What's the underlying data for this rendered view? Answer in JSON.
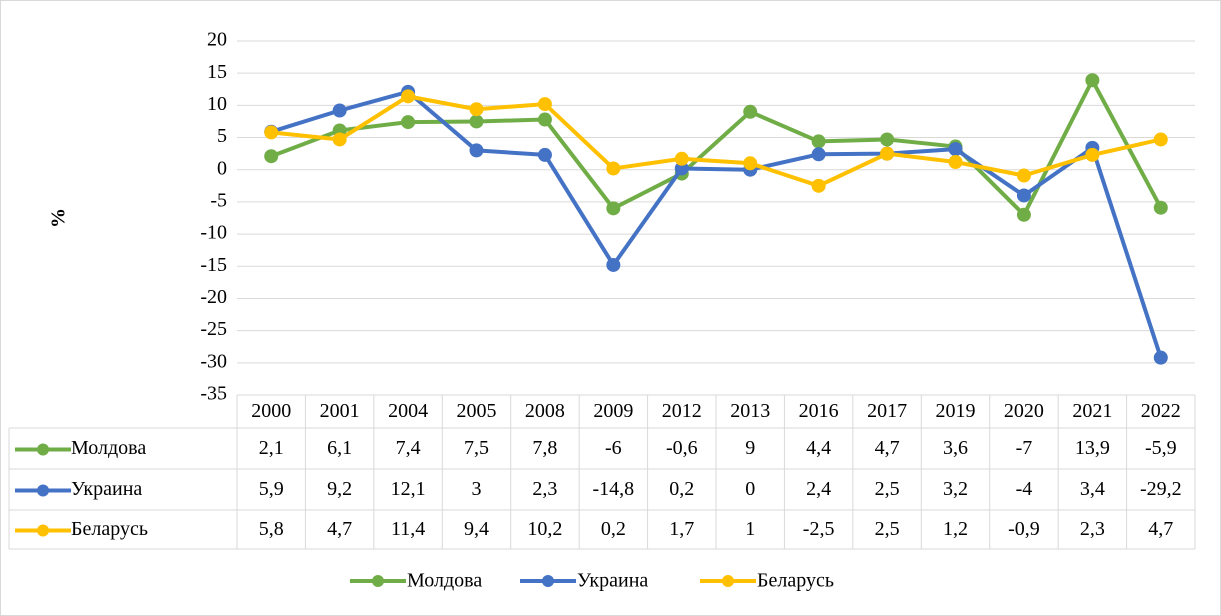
{
  "chart_data": {
    "type": "line",
    "y_label": "%",
    "categories": [
      "2000",
      "2001",
      "2004",
      "2005",
      "2008",
      "2009",
      "2012",
      "2013",
      "2016",
      "2017",
      "2019",
      "2020",
      "2021",
      "2022"
    ],
    "series": [
      {
        "name": "Молдова",
        "color": "#70ad47",
        "values": [
          2.1,
          6.1,
          7.4,
          7.5,
          7.8,
          -6,
          -0.6,
          9,
          4.4,
          4.7,
          3.6,
          -7,
          13.9,
          -5.9
        ],
        "value_labels": [
          "2,1",
          "6,1",
          "7,4",
          "7,5",
          "7,8",
          "-6",
          "-0,6",
          "9",
          "4,4",
          "4,7",
          "3,6",
          "-7",
          "13,9",
          "-5,9"
        ]
      },
      {
        "name": "Украина",
        "color": "#4472c4",
        "values": [
          5.9,
          9.2,
          12.1,
          3,
          2.3,
          -14.8,
          0.2,
          0,
          2.4,
          2.5,
          3.2,
          -4,
          3.4,
          -29.2
        ],
        "value_labels": [
          "5,9",
          "9,2",
          "12,1",
          "3",
          "2,3",
          "-14,8",
          "0,2",
          "0",
          "2,4",
          "2,5",
          "3,2",
          "-4",
          "3,4",
          "-29,2"
        ]
      },
      {
        "name": "Беларусь",
        "color": "#ffc000",
        "values": [
          5.8,
          4.7,
          11.4,
          9.4,
          10.2,
          0.2,
          1.7,
          1,
          -2.5,
          2.5,
          1.2,
          -0.9,
          2.3,
          4.7
        ],
        "value_labels": [
          "5,8",
          "4,7",
          "11,4",
          "9,4",
          "10,2",
          "0,2",
          "1,7",
          "1",
          "-2,5",
          "2,5",
          "1,2",
          "-0,9",
          "2,3",
          "4,7"
        ]
      }
    ],
    "ylim": [
      -35,
      20
    ],
    "yticks": [
      -35,
      -30,
      -25,
      -20,
      -15,
      -10,
      -5,
      0,
      5,
      10,
      15,
      20
    ],
    "grid": true,
    "legend": "bottom"
  }
}
